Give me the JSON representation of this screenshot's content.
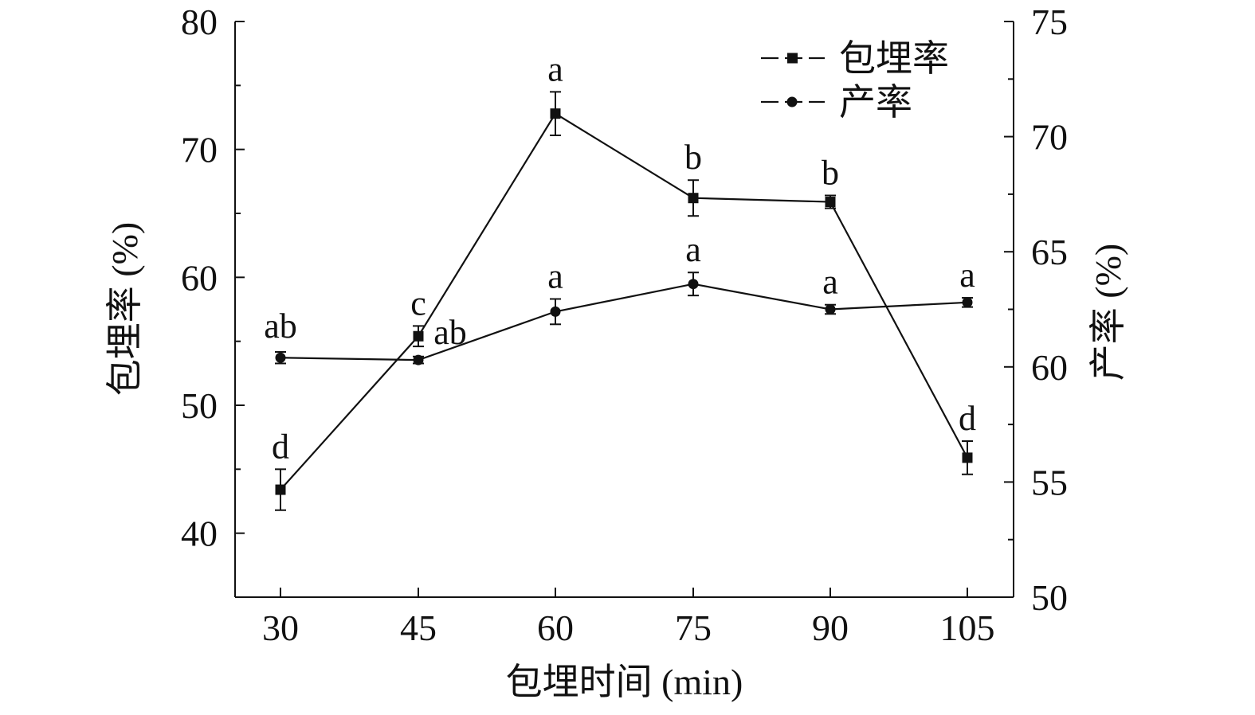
{
  "chart_data": {
    "type": "line",
    "xlabel": "包埋时间 (min)",
    "ylabel_left": "包埋率 (%)",
    "ylabel_right": "产率 (%)",
    "x": [
      30,
      45,
      60,
      75,
      90,
      105
    ],
    "x_tick_labels": [
      "30",
      "45",
      "60",
      "75",
      "90",
      "105"
    ],
    "ylim_left": [
      35,
      80
    ],
    "yticks_left": [
      40,
      50,
      60,
      70,
      80
    ],
    "ylim_right": [
      50,
      75
    ],
    "yticks_right": [
      50,
      55,
      60,
      65,
      70,
      75
    ],
    "grid": false,
    "legend_position": "top-right",
    "series": [
      {
        "name": "包埋率",
        "axis": "left",
        "marker": "square",
        "values": [
          43.4,
          55.4,
          72.8,
          66.2,
          65.9,
          45.9
        ],
        "errors": [
          1.6,
          0.8,
          1.7,
          1.4,
          0.5,
          1.3
        ],
        "labels": [
          "d",
          "c",
          "a",
          "b",
          "b",
          "d"
        ]
      },
      {
        "name": "产率",
        "axis": "right",
        "marker": "circle",
        "values": [
          60.4,
          60.3,
          62.4,
          63.6,
          62.5,
          62.8
        ],
        "errors": [
          0.25,
          0.15,
          0.55,
          0.5,
          0.2,
          0.2
        ],
        "labels": [
          "ab",
          "ab",
          "a",
          "a",
          "a",
          "a"
        ]
      }
    ],
    "colors": {
      "line": "#111111",
      "axis": "#111111"
    }
  }
}
